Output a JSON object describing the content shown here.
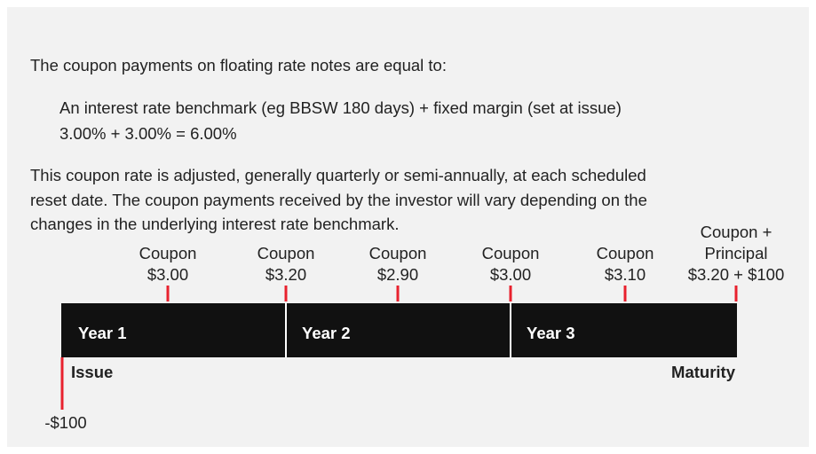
{
  "intro": "The coupon payments on floating rate notes are equal to:",
  "formula": [
    "An interest rate benchmark (eg BBSW 180 days) + fixed margin (set at issue)",
    "3.00% + 3.00% = 6.00%"
  ],
  "paragraph": [
    "This coupon rate is adjusted, generally quarterly or semi-annually, at each scheduled",
    "reset date. The coupon payments received by the investor will vary depending on the",
    "changes in the underlying interest rate benchmark."
  ],
  "timeline": {
    "years": [
      "Year 1",
      "Year 2",
      "Year 3"
    ],
    "coupons": [
      {
        "lines": [
          "Coupon",
          "$3.00"
        ]
      },
      {
        "lines": [
          "Coupon",
          "$3.20"
        ]
      },
      {
        "lines": [
          "Coupon",
          "$2.90"
        ]
      },
      {
        "lines": [
          "Coupon",
          "$3.00"
        ]
      },
      {
        "lines": [
          "Coupon",
          "$3.10"
        ]
      },
      {
        "lines": [
          "Coupon +",
          "Principal",
          "$3.20 + $100"
        ]
      }
    ],
    "issue": "Issue",
    "maturity": "Maturity",
    "investment": "-$100"
  }
}
